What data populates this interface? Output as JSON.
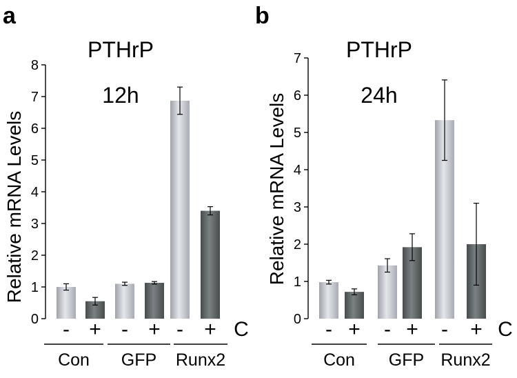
{
  "colors": {
    "light_bar": "#c9ccd3",
    "dark_bar": "#5e6465"
  },
  "chart_data": [
    {
      "type": "bar",
      "panel": "a",
      "title_lines": [
        "PTHrP",
        "12h"
      ],
      "ylabel": "Relative mRNA Levels",
      "ylim": [
        0,
        8
      ],
      "yticks": [
        0,
        1,
        2,
        3,
        4,
        5,
        6,
        7,
        8
      ],
      "grid": false,
      "legend": "none",
      "condition_axis_label": "C",
      "groups": [
        {
          "label": "Con",
          "bars": [
            {
              "condition": "-",
              "value": 1.0,
              "error": 0.1,
              "shade": "light"
            },
            {
              "condition": "+",
              "value": 0.55,
              "error": 0.12,
              "shade": "dark"
            }
          ]
        },
        {
          "label": "GFP",
          "bars": [
            {
              "condition": "-",
              "value": 1.1,
              "error": 0.05,
              "shade": "light"
            },
            {
              "condition": "+",
              "value": 1.13,
              "error": 0.04,
              "shade": "dark"
            }
          ]
        },
        {
          "label": "Runx2",
          "bars": [
            {
              "condition": "-",
              "value": 6.87,
              "error": 0.43,
              "shade": "light"
            },
            {
              "condition": "+",
              "value": 3.4,
              "error": 0.13,
              "shade": "dark"
            }
          ]
        }
      ]
    },
    {
      "type": "bar",
      "panel": "b",
      "title_lines": [
        "PTHrP",
        "24h"
      ],
      "ylabel": "Relative mRNA Levels",
      "ylim": [
        0,
        7
      ],
      "yticks": [
        0,
        1,
        2,
        3,
        4,
        5,
        6,
        7
      ],
      "grid": false,
      "legend": "none",
      "condition_axis_label": "C",
      "groups": [
        {
          "label": "Con",
          "bars": [
            {
              "condition": "-",
              "value": 0.98,
              "error": 0.05,
              "shade": "light"
            },
            {
              "condition": "+",
              "value": 0.72,
              "error": 0.08,
              "shade": "dark"
            }
          ]
        },
        {
          "label": "GFP",
          "bars": [
            {
              "condition": "-",
              "value": 1.43,
              "error": 0.18,
              "shade": "light"
            },
            {
              "condition": "+",
              "value": 1.92,
              "error": 0.36,
              "shade": "dark"
            }
          ]
        },
        {
          "label": "Runx2",
          "bars": [
            {
              "condition": "-",
              "value": 5.33,
              "error": 1.08,
              "shade": "light"
            },
            {
              "condition": "+",
              "value": 2.0,
              "error": 1.1,
              "shade": "dark"
            }
          ]
        }
      ]
    }
  ]
}
